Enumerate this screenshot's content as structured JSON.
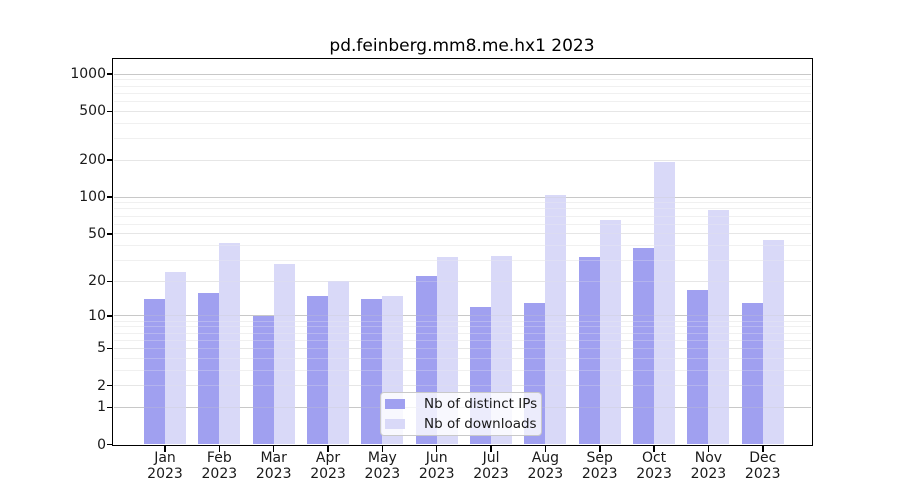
{
  "chart_data": {
    "type": "bar",
    "title": "pd.feinberg.mm8.me.hx1 2023",
    "categories": [
      "Jan",
      "Feb",
      "Mar",
      "Apr",
      "May",
      "Jun",
      "Jul",
      "Aug",
      "Sep",
      "Oct",
      "Nov",
      "Dec"
    ],
    "x_tick_year": "2023",
    "series": [
      {
        "name": "Nb of distinct IPs",
        "color": "#a0a0f0",
        "values": [
          14,
          16,
          10,
          15,
          14,
          22,
          12,
          13,
          32,
          38,
          17,
          13
        ]
      },
      {
        "name": "Nb of downloads",
        "color": "#d9d9f8",
        "values": [
          24,
          42,
          28,
          20,
          15,
          32,
          33,
          105,
          65,
          195,
          78,
          44
        ]
      }
    ],
    "y_axis": {
      "scale": "log10(value+1)",
      "tick_labels": [
        "1000",
        "500",
        "200",
        "100",
        "50",
        "20",
        "10",
        "5",
        "2",
        "1",
        "0"
      ],
      "tick_values": [
        1000,
        500,
        200,
        100,
        50,
        20,
        10,
        5,
        2,
        1,
        0
      ],
      "ylim_top": 1300
    },
    "legend": {
      "position": "inside-lower-center",
      "items": [
        "Nb of distinct IPs",
        "Nb of downloads"
      ]
    },
    "grid": "on"
  },
  "colors": {
    "grid_major": "#c8c8c8",
    "grid_labeled": "#e6e6e6",
    "grid_minor": "#f0f0f0",
    "axis": "#000000",
    "background": "#ffffff"
  }
}
